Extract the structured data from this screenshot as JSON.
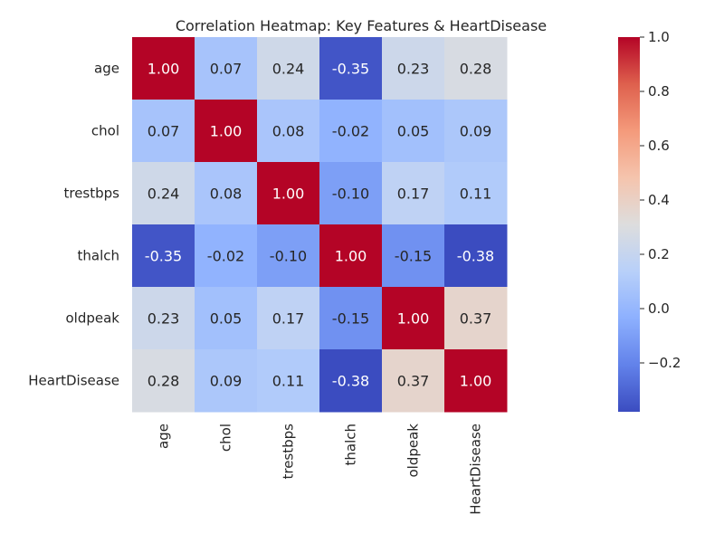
{
  "chart_data": {
    "type": "heatmap",
    "title": "Correlation Heatmap: Key Features & HeartDisease",
    "rows": [
      "age",
      "chol",
      "trestbps",
      "thalch",
      "oldpeak",
      "HeartDisease"
    ],
    "cols": [
      "age",
      "chol",
      "trestbps",
      "thalch",
      "oldpeak",
      "HeartDisease"
    ],
    "values": [
      [
        1.0,
        0.07,
        0.24,
        -0.35,
        0.23,
        0.28
      ],
      [
        0.07,
        1.0,
        0.08,
        -0.02,
        0.05,
        0.09
      ],
      [
        0.24,
        0.08,
        1.0,
        -0.1,
        0.17,
        0.11
      ],
      [
        -0.35,
        -0.02,
        -0.1,
        1.0,
        -0.15,
        -0.38
      ],
      [
        0.23,
        0.05,
        0.17,
        -0.15,
        1.0,
        0.37
      ],
      [
        0.28,
        0.09,
        0.11,
        -0.38,
        0.37,
        1.0
      ]
    ],
    "vmin": -0.38,
    "vmax": 1.0,
    "colormap": "coolwarm",
    "annotation_format": "0.00",
    "colorbar": {
      "ticks": [
        -0.2,
        0.0,
        0.2,
        0.4,
        0.6,
        0.8,
        1.0
      ],
      "tick_labels": [
        "−0.2",
        "0.0",
        "0.2",
        "0.4",
        "0.6",
        "0.8",
        "1.0"
      ],
      "position": "right"
    },
    "grid": false
  }
}
